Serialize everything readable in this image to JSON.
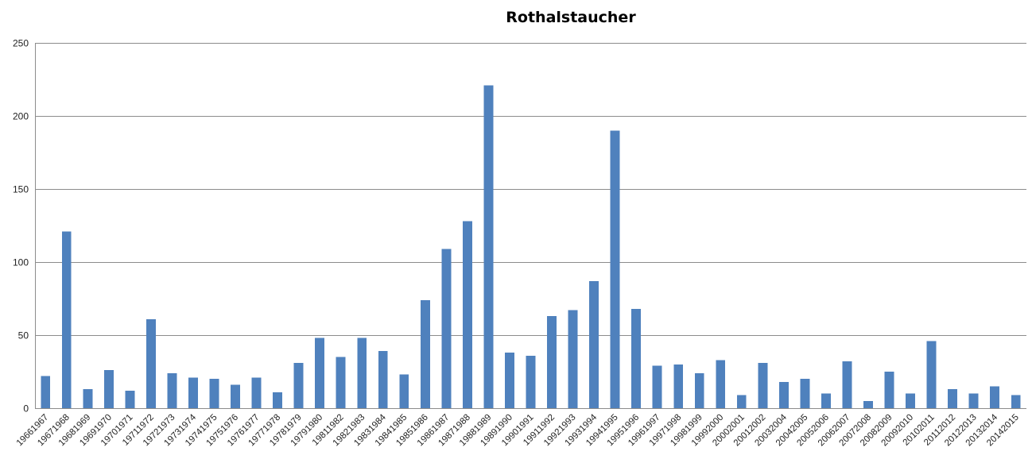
{
  "chart_data": {
    "type": "bar",
    "title": "Rothalstaucher",
    "xlabel": "",
    "ylabel": "",
    "ylim": [
      0,
      250
    ],
    "yticks": [
      "0",
      "50",
      "100",
      "150",
      "200",
      "250"
    ],
    "grid": true,
    "legend": "none",
    "bar_color": "#4f81bd",
    "categories": [
      "19661967",
      "19671968",
      "19681969",
      "19691970",
      "19701971",
      "19711972",
      "19721973",
      "19731974",
      "19741975",
      "19751976",
      "19761977",
      "19771978",
      "19781979",
      "19791980",
      "19811982",
      "19821983",
      "19831984",
      "19841985",
      "19851986",
      "19861987",
      "19871988",
      "19881989",
      "19891990",
      "19901991",
      "19911992",
      "19921993",
      "19931994",
      "19941995",
      "19951996",
      "19961997",
      "19971998",
      "19981999",
      "19992000",
      "20002001",
      "20012002",
      "20032004",
      "20042005",
      "20052006",
      "20062007",
      "20072008",
      "20082009",
      "20092010",
      "20102011",
      "20112012",
      "20122013",
      "20132014",
      "20142015"
    ],
    "values": [
      22,
      121,
      13,
      26,
      12,
      61,
      24,
      21,
      20,
      16,
      21,
      11,
      31,
      48,
      35,
      48,
      39,
      23,
      74,
      109,
      128,
      221,
      38,
      36,
      63,
      67,
      87,
      190,
      68,
      29,
      30,
      24,
      33,
      9,
      31,
      18,
      20,
      10,
      32,
      5,
      25,
      10,
      46,
      13,
      10,
      15,
      9
    ]
  }
}
